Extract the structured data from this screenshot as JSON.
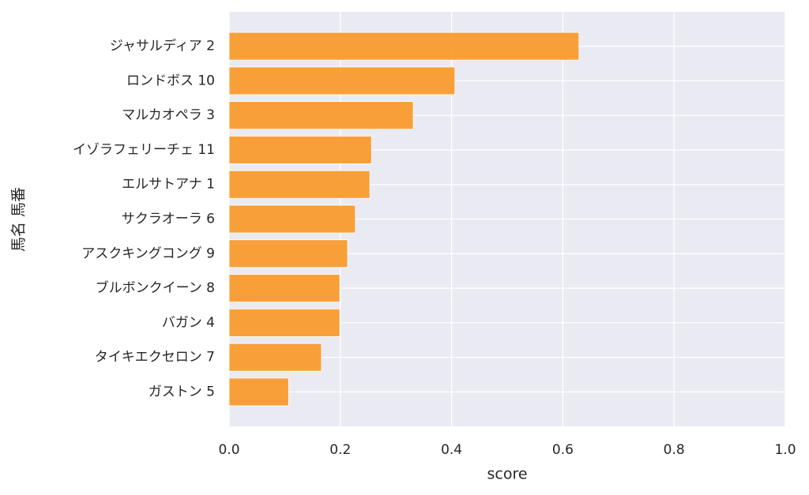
{
  "chart_data": {
    "type": "barh",
    "xlabel": "score",
    "ylabel": "馬名 馬番",
    "categories": [
      "ジャサルディア 2",
      "ロンドボス 10",
      "マルカオペラ 3",
      "イゾラフェリーチェ 11",
      "エルサトアナ 1",
      "サクラオーラ 6",
      "アスクキングコング 9",
      "ブルボンクイーン 8",
      "バガン 4",
      "タイキエクセロン 7",
      "ガストン 5"
    ],
    "values": [
      0.629,
      0.406,
      0.331,
      0.256,
      0.253,
      0.227,
      0.213,
      0.199,
      0.199,
      0.166,
      0.107
    ],
    "color": "#f99b2f",
    "xlim": [
      0,
      1
    ],
    "xticks": [
      {
        "value": 0,
        "label": "0.0"
      },
      {
        "value": 0.2,
        "label": "0.2"
      },
      {
        "value": 0.4,
        "label": "0.4"
      },
      {
        "value": 0.6,
        "label": "0.6"
      },
      {
        "value": 0.8,
        "label": "0.8"
      },
      {
        "value": 1,
        "label": "1.0"
      }
    ],
    "grid": true
  }
}
